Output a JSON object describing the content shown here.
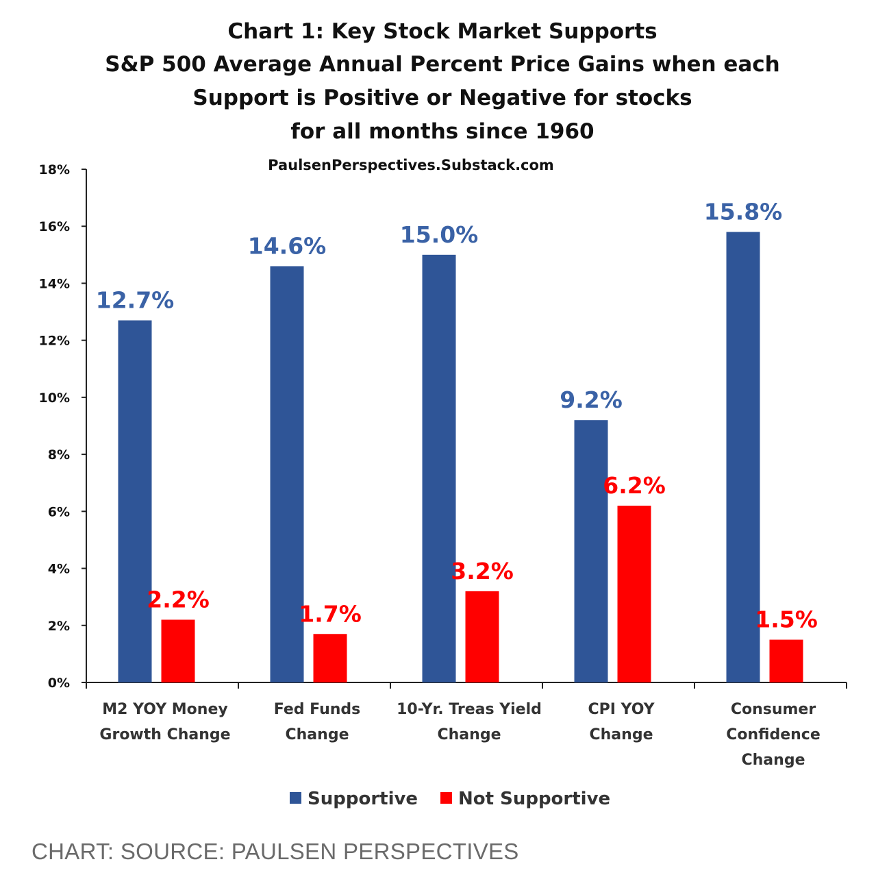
{
  "chart_data": {
    "type": "bar",
    "title_lines": [
      "Chart 1: Key Stock Market Supports",
      "S&P 500 Average Annual Percent Price Gains when each",
      "Support is Positive or Negative for stocks",
      "for all months since 1960"
    ],
    "subtitle": "PaulsenPerspectives.Substack.com",
    "categories": [
      [
        "M2 YOY Money",
        "Growth Change"
      ],
      [
        "Fed Funds",
        "Change"
      ],
      [
        "10-Yr. Treas Yield",
        "Change"
      ],
      [
        "CPI YOY",
        "Change"
      ],
      [
        "Consumer",
        "Confidence",
        "Change"
      ]
    ],
    "series": [
      {
        "name": "Supportive",
        "color": "#2f5597",
        "label_color": "#3a62a6",
        "values": [
          12.7,
          14.6,
          15.0,
          9.2,
          15.8
        ],
        "labels": [
          "12.7%",
          "14.6%",
          "15.0%",
          "9.2%",
          "15.8%"
        ]
      },
      {
        "name": "Not Supportive",
        "color": "#ff0000",
        "label_color": "#ff0000",
        "values": [
          2.2,
          1.7,
          3.2,
          6.2,
          1.5
        ],
        "labels": [
          "2.2%",
          "1.7%",
          "3.2%",
          "6.2%",
          "1.5%"
        ]
      }
    ],
    "yticks": [
      0,
      2,
      4,
      6,
      8,
      10,
      12,
      14,
      16,
      18
    ],
    "ytick_labels": [
      "0%",
      "2%",
      "4%",
      "6%",
      "8%",
      "10%",
      "12%",
      "14%",
      "16%",
      "18%"
    ],
    "ylim": [
      0,
      18
    ],
    "grid": false,
    "legend": "bottom-center"
  },
  "caption": "CHART: SOURCE: PAULSEN PERSPECTIVES"
}
